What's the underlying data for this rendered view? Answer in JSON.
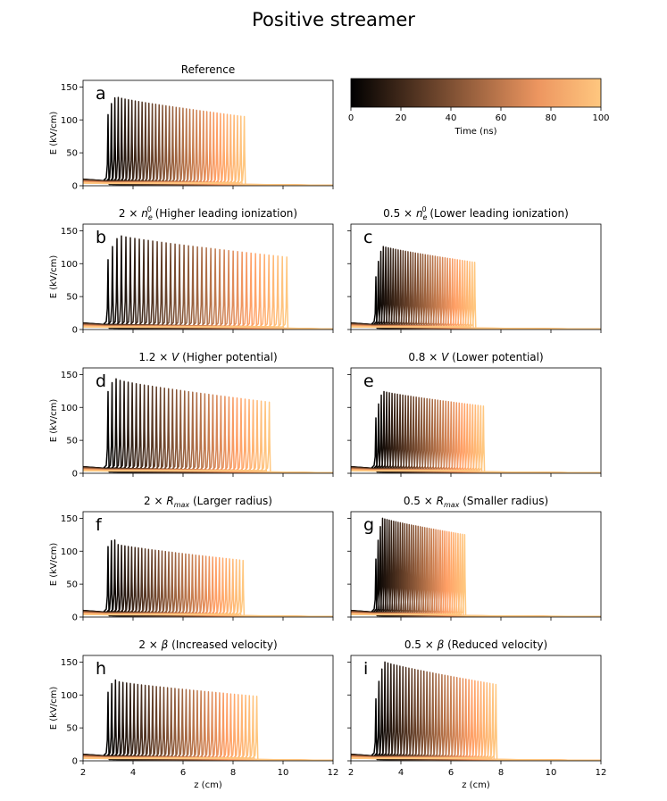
{
  "figure": {
    "title": "Positive streamer"
  },
  "colorbar": {
    "label": "Time (ns)",
    "ticks": [
      "0",
      "20",
      "40",
      "60",
      "80",
      "100"
    ],
    "range": [
      0,
      100
    ],
    "colormap": "copper",
    "colors": [
      "#000000",
      "#ffc77f"
    ]
  },
  "chart_data": [
    {
      "type": "line",
      "panel": "a",
      "title": "Reference",
      "xlabel": "",
      "ylabel": "E (kV/cm)",
      "xlim": [
        2,
        12
      ],
      "ylim": [
        0,
        160
      ],
      "xticks": [
        2,
        4,
        6,
        8,
        10,
        12
      ],
      "yticks": [
        0,
        50,
        100,
        150
      ],
      "show_xticklabels": false,
      "n_curves": 41,
      "front_start_cm": 3.0,
      "front_end_cm": 8.45,
      "first_peak": 108,
      "peak_max": 134,
      "peak_end": 105,
      "time_range_ns": [
        0,
        100
      ]
    },
    {
      "type": "line",
      "panel": "b",
      "title": "2 × n_e^0 (Higher leading ionization)",
      "title_parts": [
        "2 × ",
        "n",
        "e",
        "0",
        " (Higher leading ionization)"
      ],
      "xlabel": "",
      "ylabel": "E (kV/cm)",
      "xlim": [
        2,
        12
      ],
      "ylim": [
        0,
        160
      ],
      "xticks": [
        2,
        4,
        6,
        8,
        10,
        12
      ],
      "yticks": [
        0,
        50,
        100,
        150
      ],
      "show_xticklabels": false,
      "n_curves": 41,
      "front_start_cm": 3.0,
      "front_end_cm": 10.15,
      "first_peak": 106,
      "peak_max": 142,
      "peak_end": 110,
      "time_range_ns": [
        0,
        100
      ]
    },
    {
      "type": "line",
      "panel": "c",
      "title": "0.5 × n_e^0 (Lower leading ionization)",
      "title_parts": [
        "0.5 × ",
        "n",
        "e",
        "0",
        " (Lower leading ionization)"
      ],
      "xlabel": "",
      "ylabel": "",
      "xlim": [
        2,
        12
      ],
      "ylim": [
        0,
        160
      ],
      "xticks": [
        2,
        4,
        6,
        8,
        10,
        12
      ],
      "yticks": [
        0,
        50,
        100,
        150
      ],
      "show_xticklabels": false,
      "show_yticklabels": false,
      "n_curves": 41,
      "front_start_cm": 3.0,
      "front_end_cm": 6.95,
      "first_peak": 80,
      "peak_max": 126,
      "peak_end": 102,
      "time_range_ns": [
        0,
        100
      ]
    },
    {
      "type": "line",
      "panel": "d",
      "title": "1.2 × V (Higher potential)",
      "title_parts": [
        "1.2 × ",
        "V",
        " (Higher potential)"
      ],
      "xlabel": "",
      "ylabel": "E (kV/cm)",
      "xlim": [
        2,
        12
      ],
      "ylim": [
        0,
        160
      ],
      "xticks": [
        2,
        4,
        6,
        8,
        10,
        12
      ],
      "yticks": [
        0,
        50,
        100,
        150
      ],
      "show_xticklabels": false,
      "n_curves": 41,
      "front_start_cm": 3.0,
      "front_end_cm": 9.45,
      "first_peak": 124,
      "peak_max": 141,
      "peak_end": 108,
      "time_range_ns": [
        0,
        100
      ]
    },
    {
      "type": "line",
      "panel": "e",
      "title": "0.8 × V (Lower potential)",
      "title_parts": [
        "0.8 × ",
        "V",
        " (Lower potential)"
      ],
      "xlabel": "",
      "ylabel": "",
      "xlim": [
        2,
        12
      ],
      "ylim": [
        0,
        160
      ],
      "xticks": [
        2,
        4,
        6,
        8,
        10,
        12
      ],
      "yticks": [
        0,
        50,
        100,
        150
      ],
      "show_xticklabels": false,
      "show_yticklabels": false,
      "n_curves": 41,
      "front_start_cm": 3.0,
      "front_end_cm": 7.3,
      "first_peak": 84,
      "peak_max": 124,
      "peak_end": 102,
      "time_range_ns": [
        0,
        100
      ]
    },
    {
      "type": "line",
      "panel": "f",
      "title": "2 × R_max (Larger radius)",
      "title_parts": [
        "2 × ",
        "R",
        "max",
        "",
        " (Larger radius)"
      ],
      "xlabel": "",
      "ylabel": "E (kV/cm)",
      "xlim": [
        2,
        12
      ],
      "ylim": [
        0,
        160
      ],
      "xticks": [
        2,
        4,
        6,
        8,
        10,
        12
      ],
      "yticks": [
        0,
        50,
        100,
        150
      ],
      "show_xticklabels": false,
      "n_curves": 41,
      "front_start_cm": 3.0,
      "front_end_cm": 8.4,
      "first_peak": 107,
      "peak_max": 110,
      "peak_end": 86,
      "time_range_ns": [
        0,
        100
      ]
    },
    {
      "type": "line",
      "panel": "g",
      "title": "0.5 × R_max (Smaller radius)",
      "title_parts": [
        "0.5 × ",
        "R",
        "max",
        "",
        " (Smaller radius)"
      ],
      "xlabel": "",
      "ylabel": "",
      "xlim": [
        2,
        12
      ],
      "ylim": [
        0,
        160
      ],
      "xticks": [
        2,
        4,
        6,
        8,
        10,
        12
      ],
      "yticks": [
        0,
        50,
        100,
        150
      ],
      "show_xticklabels": false,
      "show_yticklabels": false,
      "n_curves": 41,
      "front_start_cm": 3.0,
      "front_end_cm": 6.55,
      "first_peak": 88,
      "peak_max": 150,
      "peak_end": 125,
      "time_range_ns": [
        0,
        100
      ]
    },
    {
      "type": "line",
      "panel": "h",
      "title": "2 × β (Increased velocity)",
      "title_parts": [
        "2 × ",
        "β",
        " (Increased velocity)"
      ],
      "xlabel": "z (cm)",
      "ylabel": "E (kV/cm)",
      "xlim": [
        2,
        12
      ],
      "ylim": [
        0,
        160
      ],
      "xticks": [
        2,
        4,
        6,
        8,
        10,
        12
      ],
      "yticks": [
        0,
        50,
        100,
        150
      ],
      "show_xticklabels": true,
      "n_curves": 41,
      "front_start_cm": 3.0,
      "front_end_cm": 8.95,
      "first_peak": 104,
      "peak_max": 120,
      "peak_end": 98,
      "time_range_ns": [
        0,
        100
      ]
    },
    {
      "type": "line",
      "panel": "i",
      "title": "0.5 × β (Reduced velocity)",
      "title_parts": [
        "0.5 × ",
        "β",
        " (Reduced velocity)"
      ],
      "xlabel": "z (cm)",
      "ylabel": "",
      "xlim": [
        2,
        12
      ],
      "ylim": [
        0,
        160
      ],
      "xticks": [
        2,
        4,
        6,
        8,
        10,
        12
      ],
      "yticks": [
        0,
        50,
        100,
        150
      ],
      "show_xticklabels": true,
      "show_yticklabels": false,
      "n_curves": 41,
      "front_start_cm": 3.0,
      "front_end_cm": 7.8,
      "first_peak": 94,
      "peak_max": 150,
      "peak_end": 116,
      "time_range_ns": [
        0,
        100
      ]
    }
  ]
}
